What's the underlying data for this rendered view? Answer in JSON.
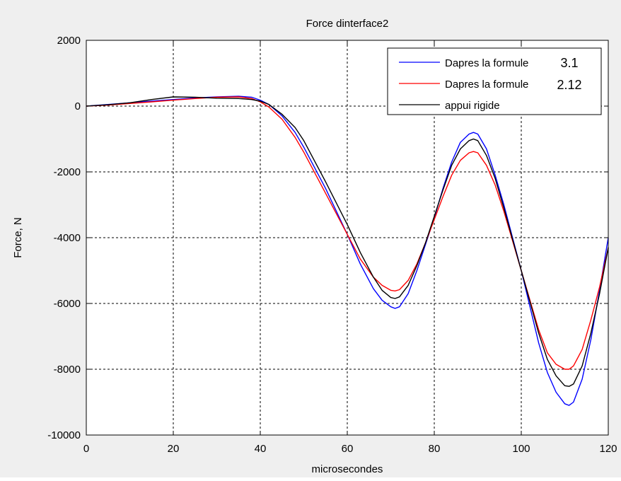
{
  "chart_data": {
    "type": "line",
    "title": "Force dinterface2",
    "xlabel": "microsecondes",
    "ylabel": "Force, N",
    "xlim": [
      0,
      120
    ],
    "ylim": [
      -10000,
      2000
    ],
    "xticks": [
      0,
      20,
      40,
      60,
      80,
      100,
      120
    ],
    "yticks": [
      -10000,
      -8000,
      -6000,
      -4000,
      -2000,
      0,
      2000
    ],
    "xtick_labels": [
      "0",
      "20",
      "40",
      "60",
      "80",
      "100",
      "120"
    ],
    "ytick_labels": [
      "-10000",
      "-8000",
      "-6000",
      "-4000",
      "-2000",
      "0",
      "2000"
    ],
    "grid": true,
    "legend_position": "top-right",
    "series": [
      {
        "name": "Dapres la formule",
        "name_suffix": "3.1",
        "color": "#0000ff",
        "x": [
          0,
          5,
          10,
          15,
          20,
          25,
          30,
          35,
          38,
          40,
          42,
          45,
          48,
          50,
          55,
          60,
          63,
          66,
          68,
          70,
          71,
          72,
          74,
          76,
          78,
          80,
          82,
          84,
          86,
          88,
          89,
          90,
          92,
          94,
          96,
          98,
          100,
          102,
          104,
          106,
          108,
          110,
          111,
          112,
          114,
          116,
          118,
          120
        ],
        "y": [
          0,
          50,
          100,
          150,
          200,
          250,
          280,
          300,
          270,
          180,
          50,
          -300,
          -800,
          -1250,
          -2500,
          -3900,
          -4800,
          -5550,
          -5900,
          -6100,
          -6150,
          -6100,
          -5700,
          -5000,
          -4200,
          -3400,
          -2500,
          -1700,
          -1100,
          -850,
          -800,
          -850,
          -1300,
          -2100,
          -3000,
          -4000,
          -5000,
          -6100,
          -7200,
          -8100,
          -8700,
          -9050,
          -9100,
          -9000,
          -8300,
          -7100,
          -5600,
          -4000
        ]
      },
      {
        "name": "Dapres la formule",
        "name_suffix": "2.12",
        "color": "#ff0000",
        "x": [
          0,
          5,
          10,
          15,
          20,
          25,
          30,
          35,
          38,
          40,
          42,
          45,
          48,
          50,
          55,
          60,
          63,
          66,
          68,
          70,
          71,
          72,
          74,
          76,
          78,
          80,
          82,
          84,
          86,
          88,
          89,
          90,
          92,
          94,
          96,
          98,
          100,
          102,
          104,
          106,
          108,
          110,
          111,
          112,
          114,
          116,
          118,
          120
        ],
        "y": [
          0,
          30,
          80,
          130,
          180,
          230,
          270,
          280,
          230,
          130,
          -30,
          -400,
          -950,
          -1400,
          -2650,
          -3900,
          -4650,
          -5200,
          -5450,
          -5600,
          -5620,
          -5580,
          -5300,
          -4800,
          -4150,
          -3450,
          -2750,
          -2100,
          -1650,
          -1420,
          -1380,
          -1420,
          -1800,
          -2400,
          -3200,
          -4100,
          -5000,
          -5900,
          -6800,
          -7500,
          -7850,
          -8000,
          -8000,
          -7900,
          -7400,
          -6500,
          -5500,
          -4300
        ]
      },
      {
        "name": "appui rigide",
        "color": "#000000",
        "x": [
          0,
          5,
          10,
          15,
          20,
          25,
          30,
          35,
          38,
          40,
          42,
          45,
          48,
          50,
          55,
          60,
          63,
          66,
          68,
          70,
          71,
          72,
          74,
          76,
          78,
          80,
          82,
          84,
          86,
          88,
          89,
          90,
          92,
          94,
          96,
          98,
          100,
          102,
          104,
          106,
          108,
          110,
          111,
          112,
          114,
          116,
          118,
          120
        ],
        "y": [
          0,
          40,
          100,
          200,
          280,
          270,
          240,
          230,
          200,
          150,
          50,
          -250,
          -650,
          -1050,
          -2300,
          -3600,
          -4450,
          -5200,
          -5600,
          -5820,
          -5850,
          -5800,
          -5450,
          -4850,
          -4150,
          -3350,
          -2550,
          -1800,
          -1300,
          -1050,
          -1000,
          -1050,
          -1500,
          -2200,
          -3100,
          -4050,
          -5000,
          -5950,
          -6900,
          -7700,
          -8200,
          -8500,
          -8520,
          -8450,
          -7900,
          -6900,
          -5700,
          -4300
        ]
      }
    ]
  }
}
